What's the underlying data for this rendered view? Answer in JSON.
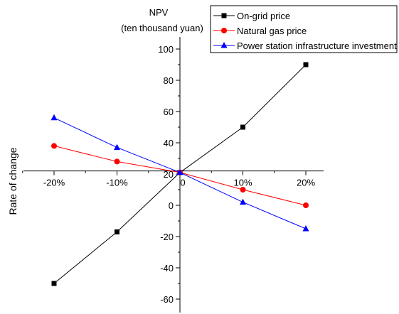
{
  "chart_data": {
    "type": "line",
    "ylabel_top": "NPV",
    "ylabel_unit": "(ten thousand yuan)",
    "xlabel": "Rate of change",
    "categories": [
      "-20%",
      "-10%",
      "0",
      "10%",
      "20%"
    ],
    "x": [
      -20,
      -10,
      0,
      10,
      20
    ],
    "ylim": [
      -70,
      100
    ],
    "yticks": [
      -60,
      -40,
      -20,
      0,
      20,
      40,
      60,
      80,
      100
    ],
    "x_axis_crosses_y_at": 22,
    "grid": false,
    "legend_position": "top-right",
    "series": [
      {
        "name": "On-grid price",
        "values": [
          -50,
          -17,
          21,
          50,
          90
        ],
        "color": "#000000",
        "marker": "square"
      },
      {
        "name": "Natural gas price",
        "values": [
          38,
          28,
          21,
          10,
          0
        ],
        "color": "#ff0000",
        "marker": "circle"
      },
      {
        "name": "Power station infrastructure investment",
        "values": [
          56,
          37,
          21,
          2,
          -15
        ],
        "color": "#0000ff",
        "marker": "triangle"
      }
    ]
  }
}
